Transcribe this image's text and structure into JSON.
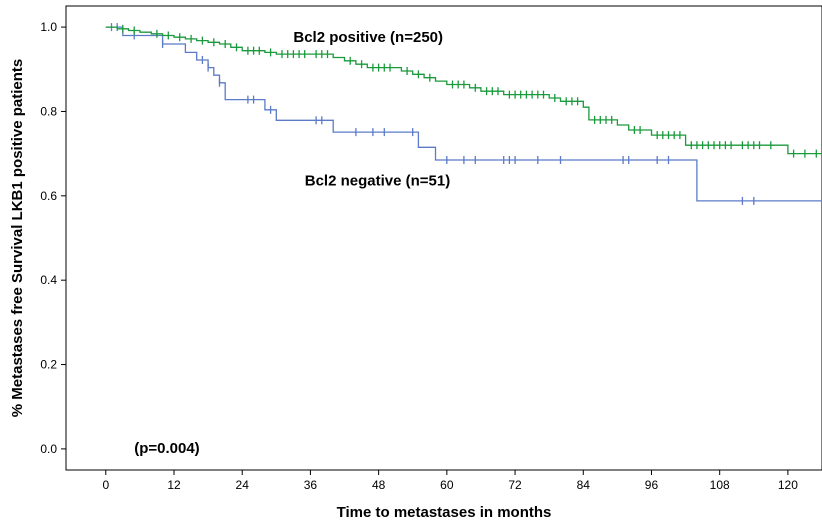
{
  "chart_data": {
    "type": "line",
    "title": "",
    "xlabel": "Time to metastases in months",
    "ylabel": "% Metastases free Survival LKB1 positive patients",
    "xlim": [
      -7,
      126
    ],
    "ylim": [
      -0.05,
      1.05
    ],
    "x_ticks": [
      0,
      12,
      24,
      36,
      48,
      60,
      72,
      84,
      96,
      108,
      120
    ],
    "x_tick_labels": [
      "0",
      "12",
      "24",
      "36",
      "48",
      "60",
      "72",
      "84",
      "96",
      "108",
      "120"
    ],
    "y_ticks": [
      0.0,
      0.2,
      0.4,
      0.6,
      0.8,
      1.0
    ],
    "y_tick_labels": [
      "0.0",
      "0.2",
      "0.4",
      "0.6",
      "0.8",
      "1.0"
    ],
    "grid": false,
    "annotations": [
      {
        "text": "Bcl2 positive (n=250)",
        "x": 33,
        "y": 0.965
      },
      {
        "text": "Bcl2 negative (n=51)",
        "x": 35,
        "y": 0.625
      },
      {
        "text": "(p=0.004)",
        "x": 5,
        "y": -0.01
      }
    ],
    "series": [
      {
        "name": "Bcl2 positive (n=250)",
        "color": "#1a9a3c",
        "steps": [
          [
            0,
            1.0
          ],
          [
            2,
            0.996
          ],
          [
            4,
            0.992
          ],
          [
            6,
            0.988
          ],
          [
            8,
            0.984
          ],
          [
            10,
            0.98
          ],
          [
            12,
            0.976
          ],
          [
            14,
            0.972
          ],
          [
            16,
            0.968
          ],
          [
            18,
            0.964
          ],
          [
            20,
            0.96
          ],
          [
            22,
            0.952
          ],
          [
            24,
            0.944
          ],
          [
            28,
            0.94
          ],
          [
            30,
            0.936
          ],
          [
            40,
            0.928
          ],
          [
            42,
            0.92
          ],
          [
            44,
            0.912
          ],
          [
            46,
            0.904
          ],
          [
            52,
            0.896
          ],
          [
            54,
            0.888
          ],
          [
            56,
            0.88
          ],
          [
            58,
            0.872
          ],
          [
            60,
            0.864
          ],
          [
            64,
            0.856
          ],
          [
            66,
            0.848
          ],
          [
            70,
            0.84
          ],
          [
            78,
            0.832
          ],
          [
            80,
            0.824
          ],
          [
            84,
            0.81
          ],
          [
            85,
            0.78
          ],
          [
            90,
            0.768
          ],
          [
            92,
            0.756
          ],
          [
            96,
            0.744
          ],
          [
            102,
            0.72
          ],
          [
            120,
            0.7
          ],
          [
            126,
            0.7
          ]
        ],
        "censored": [
          [
            3,
            0.996
          ],
          [
            5,
            0.992
          ],
          [
            9,
            0.984
          ],
          [
            11,
            0.98
          ],
          [
            13,
            0.976
          ],
          [
            15,
            0.972
          ],
          [
            17,
            0.968
          ],
          [
            19,
            0.964
          ],
          [
            21,
            0.96
          ],
          [
            23,
            0.952
          ],
          [
            25,
            0.944
          ],
          [
            26,
            0.944
          ],
          [
            27,
            0.944
          ],
          [
            29,
            0.94
          ],
          [
            31,
            0.936
          ],
          [
            32,
            0.936
          ],
          [
            33,
            0.936
          ],
          [
            34,
            0.936
          ],
          [
            35,
            0.936
          ],
          [
            37,
            0.936
          ],
          [
            38,
            0.936
          ],
          [
            39,
            0.936
          ],
          [
            43,
            0.92
          ],
          [
            45,
            0.912
          ],
          [
            47,
            0.904
          ],
          [
            48,
            0.904
          ],
          [
            49,
            0.904
          ],
          [
            50,
            0.904
          ],
          [
            53,
            0.896
          ],
          [
            55,
            0.888
          ],
          [
            57,
            0.88
          ],
          [
            61,
            0.864
          ],
          [
            62,
            0.864
          ],
          [
            63,
            0.864
          ],
          [
            65,
            0.856
          ],
          [
            67,
            0.848
          ],
          [
            68,
            0.848
          ],
          [
            69,
            0.848
          ],
          [
            71,
            0.84
          ],
          [
            72,
            0.84
          ],
          [
            73,
            0.84
          ],
          [
            74,
            0.84
          ],
          [
            75,
            0.84
          ],
          [
            76,
            0.84
          ],
          [
            77,
            0.84
          ],
          [
            79,
            0.832
          ],
          [
            81,
            0.824
          ],
          [
            82,
            0.824
          ],
          [
            83,
            0.824
          ],
          [
            86,
            0.78
          ],
          [
            87,
            0.78
          ],
          [
            88,
            0.78
          ],
          [
            89,
            0.78
          ],
          [
            93,
            0.756
          ],
          [
            94,
            0.756
          ],
          [
            97,
            0.744
          ],
          [
            98,
            0.744
          ],
          [
            99,
            0.744
          ],
          [
            100,
            0.744
          ],
          [
            101,
            0.744
          ],
          [
            103,
            0.72
          ],
          [
            104,
            0.72
          ],
          [
            105,
            0.72
          ],
          [
            106,
            0.72
          ],
          [
            107,
            0.72
          ],
          [
            108,
            0.72
          ],
          [
            109,
            0.72
          ],
          [
            110,
            0.72
          ],
          [
            112,
            0.72
          ],
          [
            113,
            0.72
          ],
          [
            114,
            0.72
          ],
          [
            115,
            0.72
          ],
          [
            117,
            0.72
          ],
          [
            121,
            0.7
          ],
          [
            123,
            0.7
          ],
          [
            125,
            0.7
          ]
        ]
      },
      {
        "name": "Bcl2 negative (n=51)",
        "color": "#5b7bc8",
        "steps": [
          [
            0,
            1.0
          ],
          [
            3,
            0.98
          ],
          [
            10,
            0.96
          ],
          [
            14,
            0.94
          ],
          [
            16,
            0.922
          ],
          [
            18,
            0.904
          ],
          [
            19,
            0.886
          ],
          [
            20,
            0.868
          ],
          [
            21,
            0.828
          ],
          [
            28,
            0.804
          ],
          [
            30,
            0.779
          ],
          [
            40,
            0.751
          ],
          [
            55,
            0.715
          ],
          [
            58,
            0.685
          ],
          [
            104,
            0.588
          ],
          [
            126,
            0.588
          ]
        ],
        "censored": [
          [
            1,
            1.0
          ],
          [
            2,
            1.0
          ],
          [
            5,
            0.98
          ],
          [
            10,
            0.96
          ],
          [
            17,
            0.922
          ],
          [
            18,
            0.904
          ],
          [
            20,
            0.868
          ],
          [
            25,
            0.828
          ],
          [
            26,
            0.828
          ],
          [
            29,
            0.804
          ],
          [
            37,
            0.779
          ],
          [
            38,
            0.779
          ],
          [
            44,
            0.751
          ],
          [
            47,
            0.751
          ],
          [
            49,
            0.751
          ],
          [
            54,
            0.751
          ],
          [
            60,
            0.685
          ],
          [
            63,
            0.685
          ],
          [
            65,
            0.685
          ],
          [
            70,
            0.685
          ],
          [
            71,
            0.685
          ],
          [
            72,
            0.685
          ],
          [
            76,
            0.685
          ],
          [
            80,
            0.685
          ],
          [
            91,
            0.685
          ],
          [
            92,
            0.685
          ],
          [
            97,
            0.685
          ],
          [
            99,
            0.685
          ],
          [
            112,
            0.588
          ],
          [
            114,
            0.588
          ]
        ]
      }
    ]
  }
}
